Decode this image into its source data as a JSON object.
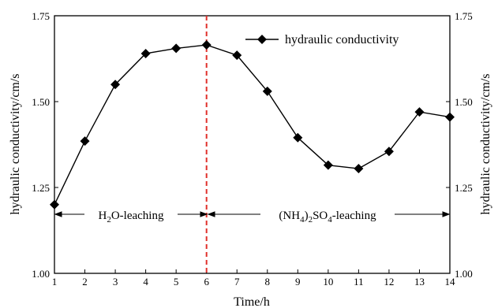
{
  "chart_data": {
    "type": "line",
    "xlabel": "Time/h",
    "ylabel": "hydraulic conductivity/cm/s",
    "ylabel_right": "hydraulic conductivity/cm/s",
    "xlim": [
      1,
      14
    ],
    "ylim": [
      1.0,
      1.75
    ],
    "x_ticks": [
      "1",
      "2",
      "3",
      "4",
      "5",
      "6",
      "7",
      "8",
      "9",
      "10",
      "11",
      "12",
      "13",
      "14"
    ],
    "y_ticks": [
      "1.00",
      "1.25",
      "1.50",
      "1.75"
    ],
    "grid": false,
    "legend_position": "top-right",
    "series": [
      {
        "name": "hydraulic conductivity",
        "marker": "diamond",
        "color": "#000000",
        "x": [
          1,
          2,
          3,
          4,
          5,
          6,
          7,
          8,
          9,
          10,
          11,
          12,
          13,
          14
        ],
        "values": [
          1.2,
          1.385,
          1.55,
          1.64,
          1.655,
          1.665,
          1.635,
          1.53,
          1.395,
          1.315,
          1.305,
          1.355,
          1.47,
          1.455
        ]
      }
    ],
    "divider": {
      "x": 6,
      "color": "#e0302b",
      "style": "dashed"
    },
    "annotations": {
      "left_phase": {
        "pre": "H",
        "sub1": "2",
        "post": "O-leaching"
      },
      "right_phase": {
        "pre": "(NH",
        "sub1": "4",
        "mid": ")",
        "sub2": "2",
        "mid2": "SO",
        "sub3": "4",
        "post": "-leaching"
      }
    }
  }
}
